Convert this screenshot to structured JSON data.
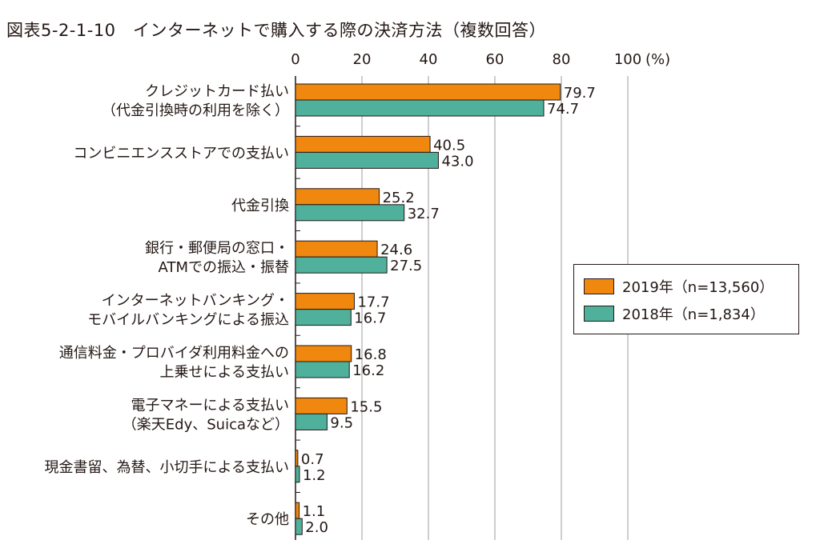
{
  "chart_data": {
    "type": "bar",
    "orientation": "horizontal",
    "title": "図表5-2-1-10　インターネットで購入する際の決済方法（複数回答）",
    "x_axis_unit": "(%)",
    "xlim": [
      0,
      100
    ],
    "xticks": [
      "0",
      "20",
      "40",
      "60",
      "80",
      "100"
    ],
    "grid": true,
    "legend_position": "right",
    "categories": [
      [
        "クレジットカード払い",
        "（代金引換時の利用を除く）"
      ],
      [
        "コンビニエンスストアでの支払い"
      ],
      [
        "代金引換"
      ],
      [
        "銀行・郵便局の窓口・",
        "ATMでの振込・振替"
      ],
      [
        "インターネットバンキング・",
        "モバイルバンキングによる振込"
      ],
      [
        "通信料金・プロバイダ利用料金への",
        "上乗せによる支払い"
      ],
      [
        "電子マネーによる支払い",
        "（楽天Edy、Suicaなど）"
      ],
      [
        "現金書留、為替、小切手による支払い"
      ],
      [
        "その他"
      ]
    ],
    "series": [
      {
        "name": "2019年（n=13,560）",
        "color": "#f0870f",
        "values": [
          79.7,
          40.5,
          25.2,
          24.6,
          17.7,
          16.8,
          15.5,
          0.7,
          1.1
        ],
        "labels": [
          "79.7",
          "40.5",
          "25.2",
          "24.6",
          "17.7",
          "16.8",
          "15.5",
          "0.7",
          "1.1"
        ]
      },
      {
        "name": "2018年（n=1,834）",
        "color": "#4fb09b",
        "values": [
          74.7,
          43.0,
          32.7,
          27.5,
          16.7,
          16.2,
          9.5,
          1.2,
          2.0
        ],
        "labels": [
          "74.7",
          "43.0",
          "32.7",
          "27.5",
          "16.7",
          "16.2",
          "9.5",
          "1.2",
          "2.0"
        ]
      }
    ]
  }
}
